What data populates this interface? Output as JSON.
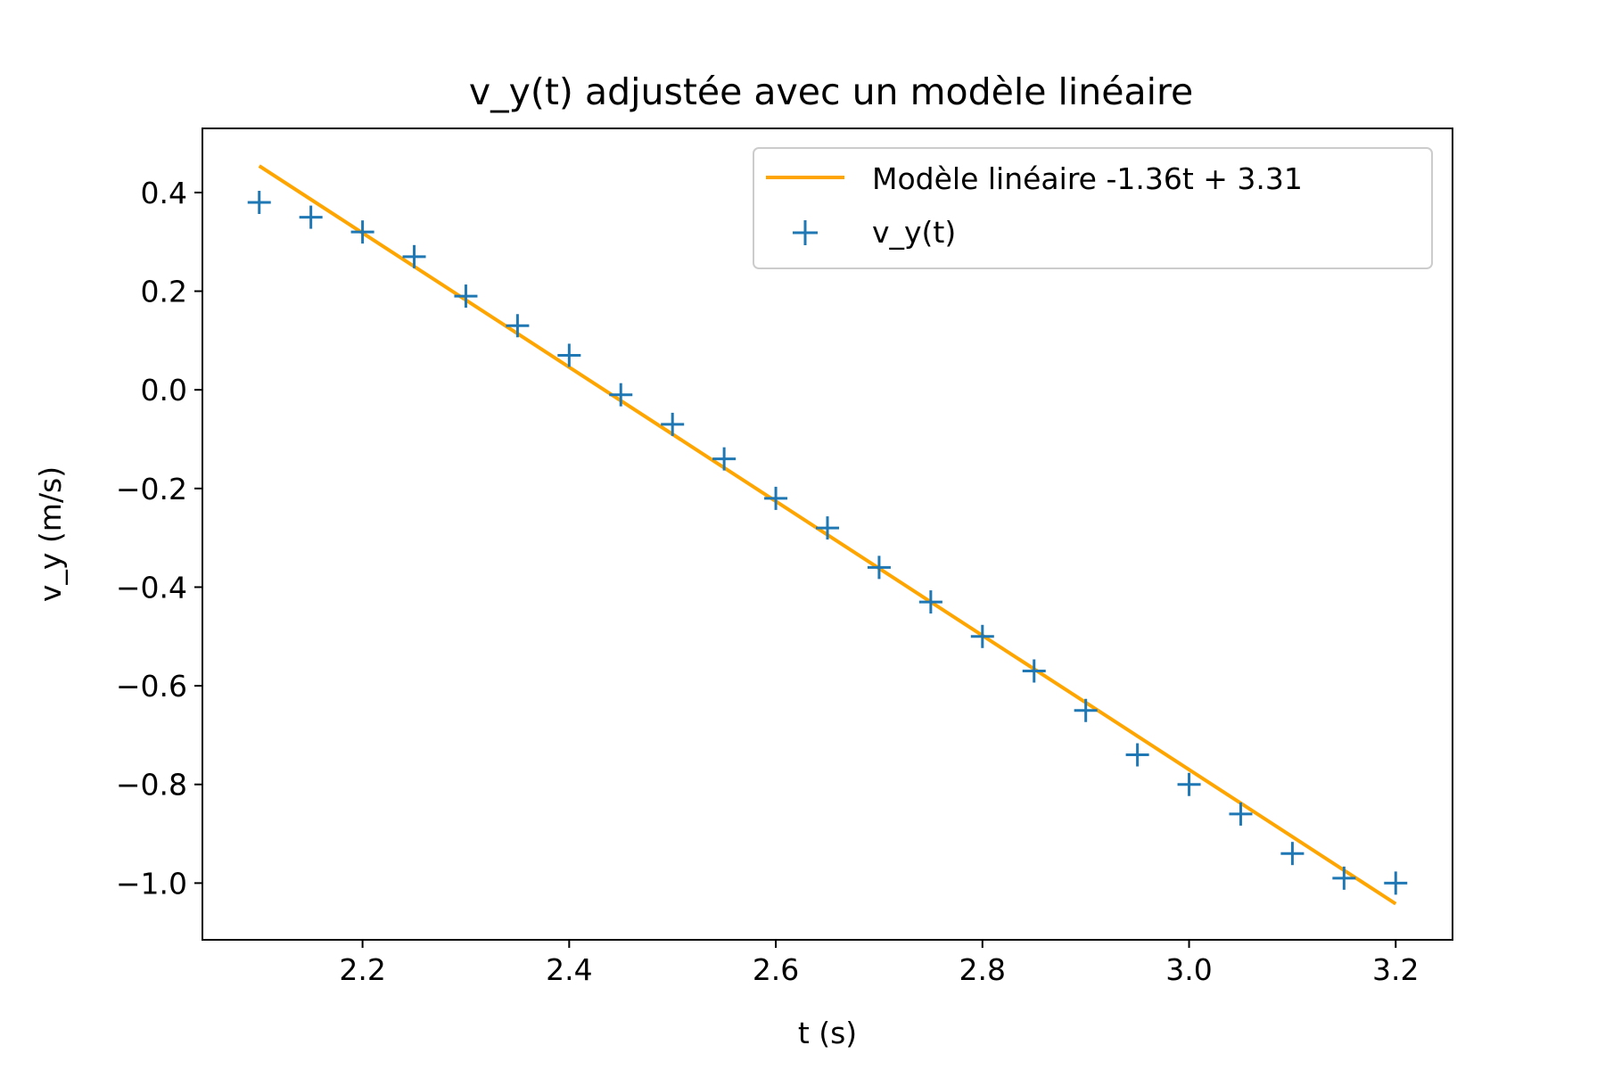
{
  "chart_data": {
    "type": "scatter",
    "title": "v_y(t) adjustée avec un modèle linéaire",
    "xlabel": "t (s)",
    "ylabel": "v_y (m/s)",
    "xlim": [
      2.045,
      3.255
    ],
    "ylim": [
      -1.115,
      0.53
    ],
    "xticks": [
      "2.2",
      "2.4",
      "2.6",
      "2.8",
      "3.0",
      "3.2"
    ],
    "yticks": [
      "0.4",
      "0.2",
      "0.0",
      "−0.2",
      "−0.4",
      "−0.6",
      "−0.8",
      "−1.0"
    ],
    "grid": false,
    "legend_position": "top-right",
    "series": [
      {
        "name": "Modèle linéaire -1.36t + 3.31",
        "kind": "line",
        "color": "#ffa500",
        "slope": -1.36,
        "intercept": 3.31,
        "x": [
          2.1,
          3.2
        ]
      },
      {
        "name": "v_y(t)",
        "kind": "scatter",
        "marker": "plus",
        "color": "#1f77b4",
        "x": [
          2.1,
          2.15,
          2.2,
          2.25,
          2.3,
          2.35,
          2.4,
          2.45,
          2.5,
          2.55,
          2.6,
          2.65,
          2.7,
          2.75,
          2.8,
          2.85,
          2.9,
          2.95,
          3.0,
          3.05,
          3.1,
          3.15,
          3.2
        ],
        "y": [
          0.38,
          0.35,
          0.32,
          0.27,
          0.19,
          0.13,
          0.07,
          -0.01,
          -0.07,
          -0.14,
          -0.22,
          -0.28,
          -0.36,
          -0.43,
          -0.5,
          -0.57,
          -0.65,
          -0.74,
          -0.8,
          -0.86,
          -0.94,
          -0.99,
          -1.0
        ]
      }
    ]
  }
}
